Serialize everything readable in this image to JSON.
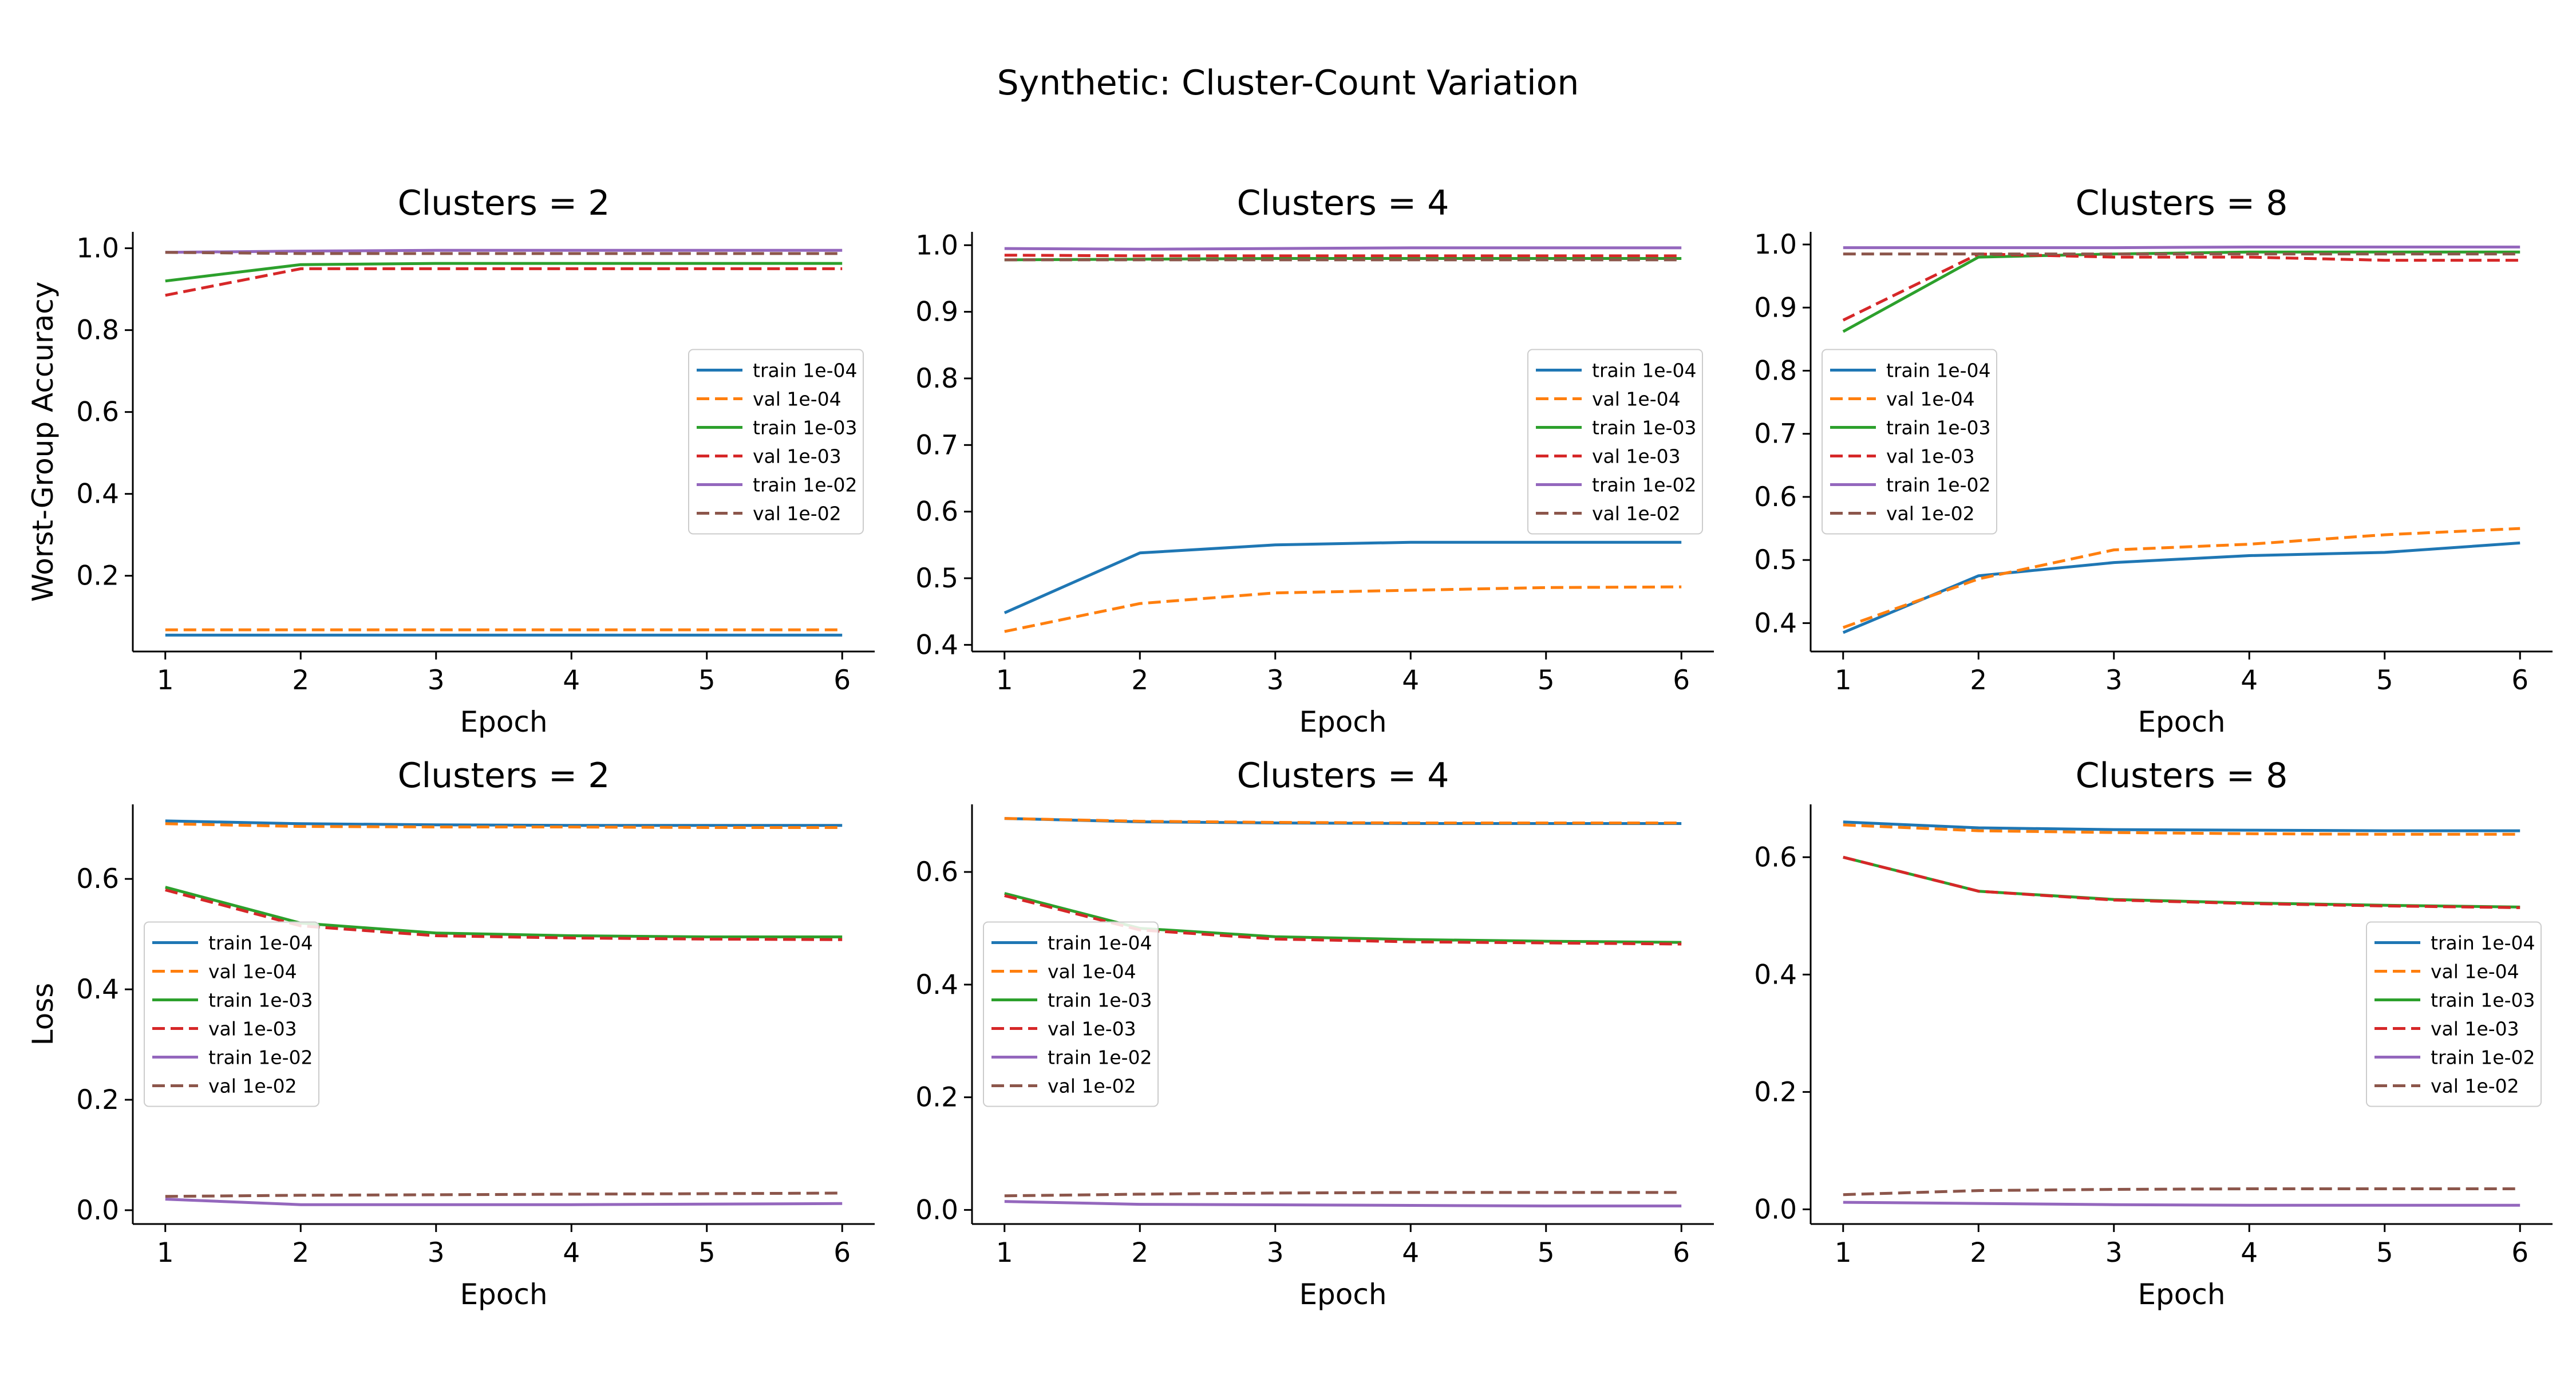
{
  "figure": {
    "suptitle": "Synthetic: Cluster-Count Variation",
    "colors": {
      "train 1e-04": "#1f77b4",
      "val 1e-04": "#ff7f0e",
      "train 1e-03": "#2ca02c",
      "val 1e-03": "#d62728",
      "train 1e-02": "#9467bd",
      "val 1e-02": "#8c564b"
    }
  },
  "chart_data": [
    {
      "type": "line",
      "title": "Clusters = 2",
      "xlabel": "Epoch",
      "ylabel": "Worst-Group Accuracy",
      "x": [
        1,
        2,
        3,
        4,
        5,
        6
      ],
      "xlim": [
        0.76,
        6.24
      ],
      "ylim": [
        0.015,
        1.04
      ],
      "yticks": [
        0.2,
        0.4,
        0.6,
        0.8,
        1.0
      ],
      "ytick_labels": [
        "0.2",
        "0.4",
        "0.6",
        "0.8",
        "1.0"
      ],
      "xticks": [
        1,
        2,
        3,
        4,
        5,
        6
      ],
      "legend_position": "center-right",
      "series": [
        {
          "name": "train 1e-04",
          "style": "solid",
          "values": [
            0.055,
            0.055,
            0.055,
            0.055,
            0.055,
            0.055
          ]
        },
        {
          "name": "val 1e-04",
          "style": "dashed",
          "values": [
            0.068,
            0.068,
            0.068,
            0.068,
            0.068,
            0.068
          ]
        },
        {
          "name": "train 1e-03",
          "style": "solid",
          "values": [
            0.92,
            0.96,
            0.963,
            0.963,
            0.963,
            0.963
          ]
        },
        {
          "name": "val 1e-03",
          "style": "dashed",
          "values": [
            0.885,
            0.95,
            0.95,
            0.95,
            0.95,
            0.95
          ]
        },
        {
          "name": "train 1e-02",
          "style": "solid",
          "values": [
            0.99,
            0.993,
            0.995,
            0.995,
            0.995,
            0.995
          ]
        },
        {
          "name": "val 1e-02",
          "style": "dashed",
          "values": [
            0.99,
            0.987,
            0.987,
            0.987,
            0.987,
            0.987
          ]
        }
      ]
    },
    {
      "type": "line",
      "title": "Clusters = 4",
      "xlabel": "Epoch",
      "ylabel": "",
      "x": [
        1,
        2,
        3,
        4,
        5,
        6
      ],
      "xlim": [
        0.76,
        6.24
      ],
      "ylim": [
        0.39,
        1.02
      ],
      "yticks": [
        0.4,
        0.5,
        0.6,
        0.7,
        0.8,
        0.9,
        1.0
      ],
      "ytick_labels": [
        "0.4",
        "0.5",
        "0.6",
        "0.7",
        "0.8",
        "0.9",
        "1.0"
      ],
      "xticks": [
        1,
        2,
        3,
        4,
        5,
        6
      ],
      "legend_position": "center-right",
      "series": [
        {
          "name": "train 1e-04",
          "style": "solid",
          "values": [
            0.448,
            0.538,
            0.55,
            0.554,
            0.554,
            0.554
          ]
        },
        {
          "name": "val 1e-04",
          "style": "dashed",
          "values": [
            0.42,
            0.462,
            0.478,
            0.482,
            0.486,
            0.487
          ]
        },
        {
          "name": "train 1e-03",
          "style": "solid",
          "values": [
            0.978,
            0.979,
            0.98,
            0.98,
            0.98,
            0.98
          ]
        },
        {
          "name": "val 1e-03",
          "style": "dashed",
          "values": [
            0.985,
            0.984,
            0.984,
            0.984,
            0.984,
            0.984
          ]
        },
        {
          "name": "train 1e-02",
          "style": "solid",
          "values": [
            0.995,
            0.994,
            0.995,
            0.996,
            0.996,
            0.996
          ]
        },
        {
          "name": "val 1e-02",
          "style": "dashed",
          "values": [
            0.978,
            0.978,
            0.978,
            0.978,
            0.978,
            0.978
          ]
        }
      ]
    },
    {
      "type": "line",
      "title": "Clusters = 8",
      "xlabel": "Epoch",
      "ylabel": "",
      "x": [
        1,
        2,
        3,
        4,
        5,
        6
      ],
      "xlim": [
        0.76,
        6.24
      ],
      "ylim": [
        0.355,
        1.02
      ],
      "yticks": [
        0.4,
        0.5,
        0.6,
        0.7,
        0.8,
        0.9,
        1.0
      ],
      "ytick_labels": [
        "0.4",
        "0.5",
        "0.6",
        "0.7",
        "0.8",
        "0.9",
        "1.0"
      ],
      "xticks": [
        1,
        2,
        3,
        4,
        5,
        6
      ],
      "legend_position": "center-left",
      "series": [
        {
          "name": "train 1e-04",
          "style": "solid",
          "values": [
            0.385,
            0.475,
            0.496,
            0.507,
            0.512,
            0.527
          ]
        },
        {
          "name": "val 1e-04",
          "style": "dashed",
          "values": [
            0.393,
            0.47,
            0.516,
            0.525,
            0.54,
            0.55
          ]
        },
        {
          "name": "train 1e-03",
          "style": "solid",
          "values": [
            0.862,
            0.98,
            0.985,
            0.988,
            0.988,
            0.988
          ]
        },
        {
          "name": "val 1e-03",
          "style": "dashed",
          "values": [
            0.88,
            0.985,
            0.98,
            0.98,
            0.975,
            0.975
          ]
        },
        {
          "name": "train 1e-02",
          "style": "solid",
          "values": [
            0.995,
            0.995,
            0.995,
            0.996,
            0.996,
            0.996
          ]
        },
        {
          "name": "val 1e-02",
          "style": "dashed",
          "values": [
            0.985,
            0.985,
            0.985,
            0.985,
            0.985,
            0.985
          ]
        }
      ]
    },
    {
      "type": "line",
      "title": "Clusters = 2",
      "xlabel": "Epoch",
      "ylabel": "Loss",
      "x": [
        1,
        2,
        3,
        4,
        5,
        6
      ],
      "xlim": [
        0.76,
        6.24
      ],
      "ylim": [
        -0.025,
        0.735
      ],
      "yticks": [
        0.0,
        0.2,
        0.4,
        0.6
      ],
      "ytick_labels": [
        "0.0",
        "0.2",
        "0.4",
        "0.6"
      ],
      "xticks": [
        1,
        2,
        3,
        4,
        5,
        6
      ],
      "legend_position": "center-left",
      "series": [
        {
          "name": "train 1e-04",
          "style": "solid",
          "values": [
            0.705,
            0.7,
            0.698,
            0.697,
            0.697,
            0.697
          ]
        },
        {
          "name": "val 1e-04",
          "style": "dashed",
          "values": [
            0.7,
            0.695,
            0.694,
            0.694,
            0.693,
            0.693
          ]
        },
        {
          "name": "train 1e-03",
          "style": "solid",
          "values": [
            0.585,
            0.52,
            0.502,
            0.497,
            0.495,
            0.495
          ]
        },
        {
          "name": "val 1e-03",
          "style": "dashed",
          "values": [
            0.58,
            0.515,
            0.497,
            0.493,
            0.491,
            0.49
          ]
        },
        {
          "name": "train 1e-02",
          "style": "solid",
          "values": [
            0.02,
            0.01,
            0.01,
            0.01,
            0.011,
            0.012
          ]
        },
        {
          "name": "val 1e-02",
          "style": "dashed",
          "values": [
            0.025,
            0.027,
            0.028,
            0.029,
            0.03,
            0.031
          ]
        }
      ]
    },
    {
      "type": "line",
      "title": "Clusters = 4",
      "xlabel": "Epoch",
      "ylabel": "",
      "x": [
        1,
        2,
        3,
        4,
        5,
        6
      ],
      "xlim": [
        0.76,
        6.24
      ],
      "ylim": [
        -0.025,
        0.72
      ],
      "yticks": [
        0.0,
        0.2,
        0.4,
        0.6
      ],
      "ytick_labels": [
        "0.0",
        "0.2",
        "0.4",
        "0.6"
      ],
      "xticks": [
        1,
        2,
        3,
        4,
        5,
        6
      ],
      "legend_position": "center-left",
      "series": [
        {
          "name": "train 1e-04",
          "style": "solid",
          "values": [
            0.695,
            0.689,
            0.687,
            0.686,
            0.686,
            0.686
          ]
        },
        {
          "name": "val 1e-04",
          "style": "dashed",
          "values": [
            0.695,
            0.69,
            0.688,
            0.687,
            0.687,
            0.687
          ]
        },
        {
          "name": "train 1e-03",
          "style": "solid",
          "values": [
            0.562,
            0.5,
            0.485,
            0.48,
            0.477,
            0.475
          ]
        },
        {
          "name": "val 1e-03",
          "style": "dashed",
          "values": [
            0.558,
            0.497,
            0.481,
            0.476,
            0.474,
            0.472
          ]
        },
        {
          "name": "train 1e-02",
          "style": "solid",
          "values": [
            0.015,
            0.01,
            0.009,
            0.008,
            0.007,
            0.007
          ]
        },
        {
          "name": "val 1e-02",
          "style": "dashed",
          "values": [
            0.025,
            0.028,
            0.03,
            0.031,
            0.031,
            0.031
          ]
        }
      ]
    },
    {
      "type": "line",
      "title": "Clusters = 8",
      "xlabel": "Epoch",
      "ylabel": "",
      "x": [
        1,
        2,
        3,
        4,
        5,
        6
      ],
      "xlim": [
        0.76,
        6.24
      ],
      "ylim": [
        -0.025,
        0.69
      ],
      "yticks": [
        0.0,
        0.2,
        0.4,
        0.6
      ],
      "ytick_labels": [
        "0.0",
        "0.2",
        "0.4",
        "0.6"
      ],
      "xticks": [
        1,
        2,
        3,
        4,
        5,
        6
      ],
      "legend_position": "center-right",
      "series": [
        {
          "name": "train 1e-04",
          "style": "solid",
          "values": [
            0.66,
            0.65,
            0.647,
            0.646,
            0.645,
            0.645
          ]
        },
        {
          "name": "val 1e-04",
          "style": "dashed",
          "values": [
            0.655,
            0.645,
            0.642,
            0.64,
            0.639,
            0.639
          ]
        },
        {
          "name": "train 1e-03",
          "style": "solid",
          "values": [
            0.6,
            0.542,
            0.528,
            0.522,
            0.518,
            0.515
          ]
        },
        {
          "name": "val 1e-03",
          "style": "dashed",
          "values": [
            0.6,
            0.542,
            0.527,
            0.521,
            0.517,
            0.514
          ]
        },
        {
          "name": "train 1e-02",
          "style": "solid",
          "values": [
            0.012,
            0.01,
            0.008,
            0.007,
            0.007,
            0.007
          ]
        },
        {
          "name": "val 1e-02",
          "style": "dashed",
          "values": [
            0.025,
            0.032,
            0.034,
            0.035,
            0.035,
            0.035
          ]
        }
      ]
    }
  ]
}
